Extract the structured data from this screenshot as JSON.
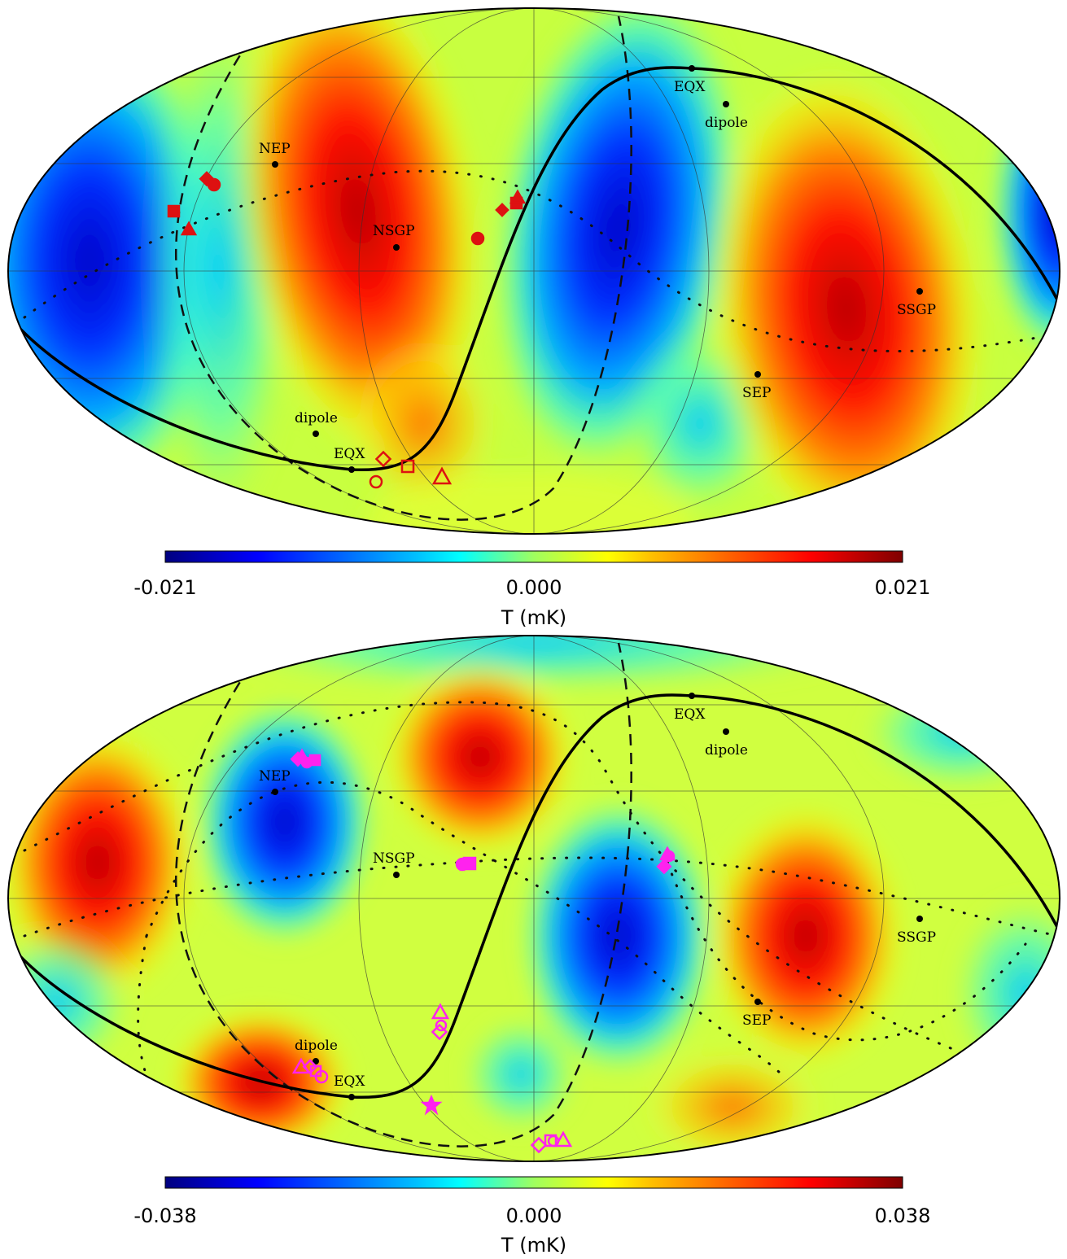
{
  "colors": {
    "colormap": [
      "#00007f",
      "#0000ff",
      "#007fff",
      "#00ffff",
      "#7fff7f",
      "#ffff00",
      "#ff7f00",
      "#ff0000",
      "#7f0000"
    ],
    "red_marker": "#dd1111",
    "magenta_marker": "#ff22ee"
  },
  "maps": [
    {
      "id": "top",
      "colorbar": {
        "min": "-0.021",
        "mid": "0.000",
        "max": "0.021",
        "unit": "T (mK)"
      },
      "labels": [
        {
          "text": "EQX",
          "name": "eqx-north-label"
        },
        {
          "text": "dipole",
          "name": "dipole-north-label"
        },
        {
          "text": "NEP",
          "name": "nep-label"
        },
        {
          "text": "NSGP",
          "name": "nsgp-label"
        },
        {
          "text": "SSGP",
          "name": "ssgp-label"
        },
        {
          "text": "SEP",
          "name": "sep-label"
        },
        {
          "text": "dipole",
          "name": "dipole-south-label"
        },
        {
          "text": "EQX",
          "name": "eqx-south-label"
        }
      ]
    },
    {
      "id": "bottom",
      "colorbar": {
        "min": "-0.038",
        "mid": "0.000",
        "max": "0.038",
        "unit": "T (mK)"
      },
      "labels": [
        {
          "text": "EQX",
          "name": "eqx-north-label"
        },
        {
          "text": "dipole",
          "name": "dipole-north-label"
        },
        {
          "text": "NEP",
          "name": "nep-label"
        },
        {
          "text": "NSGP",
          "name": "nsgp-label"
        },
        {
          "text": "SSGP",
          "name": "ssgp-label"
        },
        {
          "text": "SEP",
          "name": "sep-label"
        },
        {
          "text": "dipole",
          "name": "dipole-south-label"
        },
        {
          "text": "EQX",
          "name": "eqx-south-label"
        }
      ]
    }
  ]
}
